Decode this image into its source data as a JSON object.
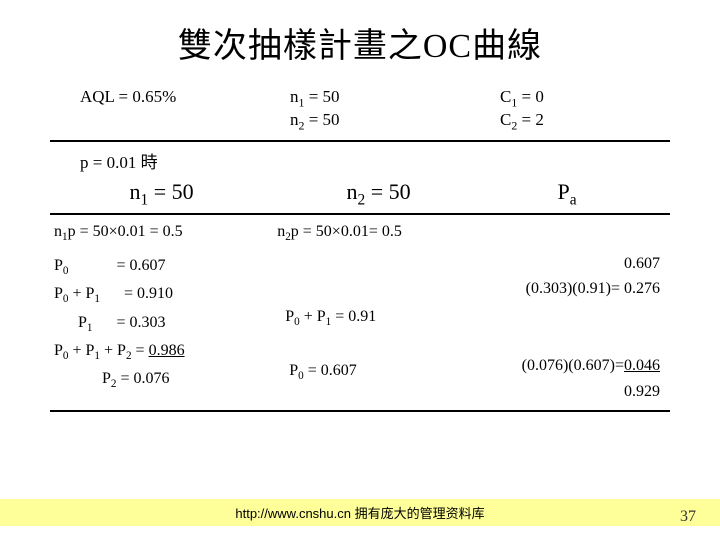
{
  "title": "雙次抽樣計畫之OC曲線",
  "top": {
    "aql": "AQL = 0.65%",
    "n1": "n<sub>1</sub> = 50",
    "n2": "n<sub>2</sub> = 50",
    "c1": "C<sub>1</sub> = 0",
    "c2": "C<sub>2</sub> = 2"
  },
  "condition": "p = 0.01 時",
  "headers": {
    "h1": "n<sub>1</sub> = 50",
    "h2": "n<sub>2</sub> = 50",
    "h3": "P<sub>a</sub>"
  },
  "col1_lines": [
    "n<sub>1</sub>p = 50×0.01 = 0.5",
    "P<sub>0</sub>&nbsp;&nbsp;&nbsp;&nbsp;&nbsp;&nbsp;&nbsp;&nbsp;&nbsp;&nbsp;&nbsp;&nbsp;= 0.607",
    "P<sub>0</sub> + P<sub>1</sub>&nbsp;&nbsp;&nbsp;&nbsp;&nbsp;&nbsp;= 0.910",
    "&nbsp;&nbsp;&nbsp;&nbsp;&nbsp;&nbsp;P<sub>1</sub>&nbsp;&nbsp;&nbsp;&nbsp;&nbsp;&nbsp;= 0.303",
    "P<sub>0</sub> + P<sub>1</sub> + P<sub>2</sub> = <span class=\"underline\">0.986</span>",
    "&nbsp;&nbsp;&nbsp;&nbsp;&nbsp;&nbsp;&nbsp;&nbsp;&nbsp;&nbsp;&nbsp;&nbsp;P<sub>2</sub>&nbsp;= 0.076"
  ],
  "col2_lines": [
    "n<sub>2</sub>p = 50×0.01= 0.5",
    "&nbsp;",
    "&nbsp;",
    "&nbsp;&nbsp;P<sub>0</sub> + P<sub>1</sub> = 0.91",
    "&nbsp;",
    "&nbsp;&nbsp;&nbsp;P<sub>0</sub> = 0.607"
  ],
  "col3_lines": [
    "&nbsp;",
    "0.607",
    "(0.303)(0.91)= 0.276",
    "&nbsp;",
    "&nbsp;",
    "(0.076)(0.607)=<span class=\"underline\">0.046</span>",
    "0.929"
  ],
  "footer": "http://www.cnshu.cn 拥有庞大的管理资料库",
  "page": "37"
}
